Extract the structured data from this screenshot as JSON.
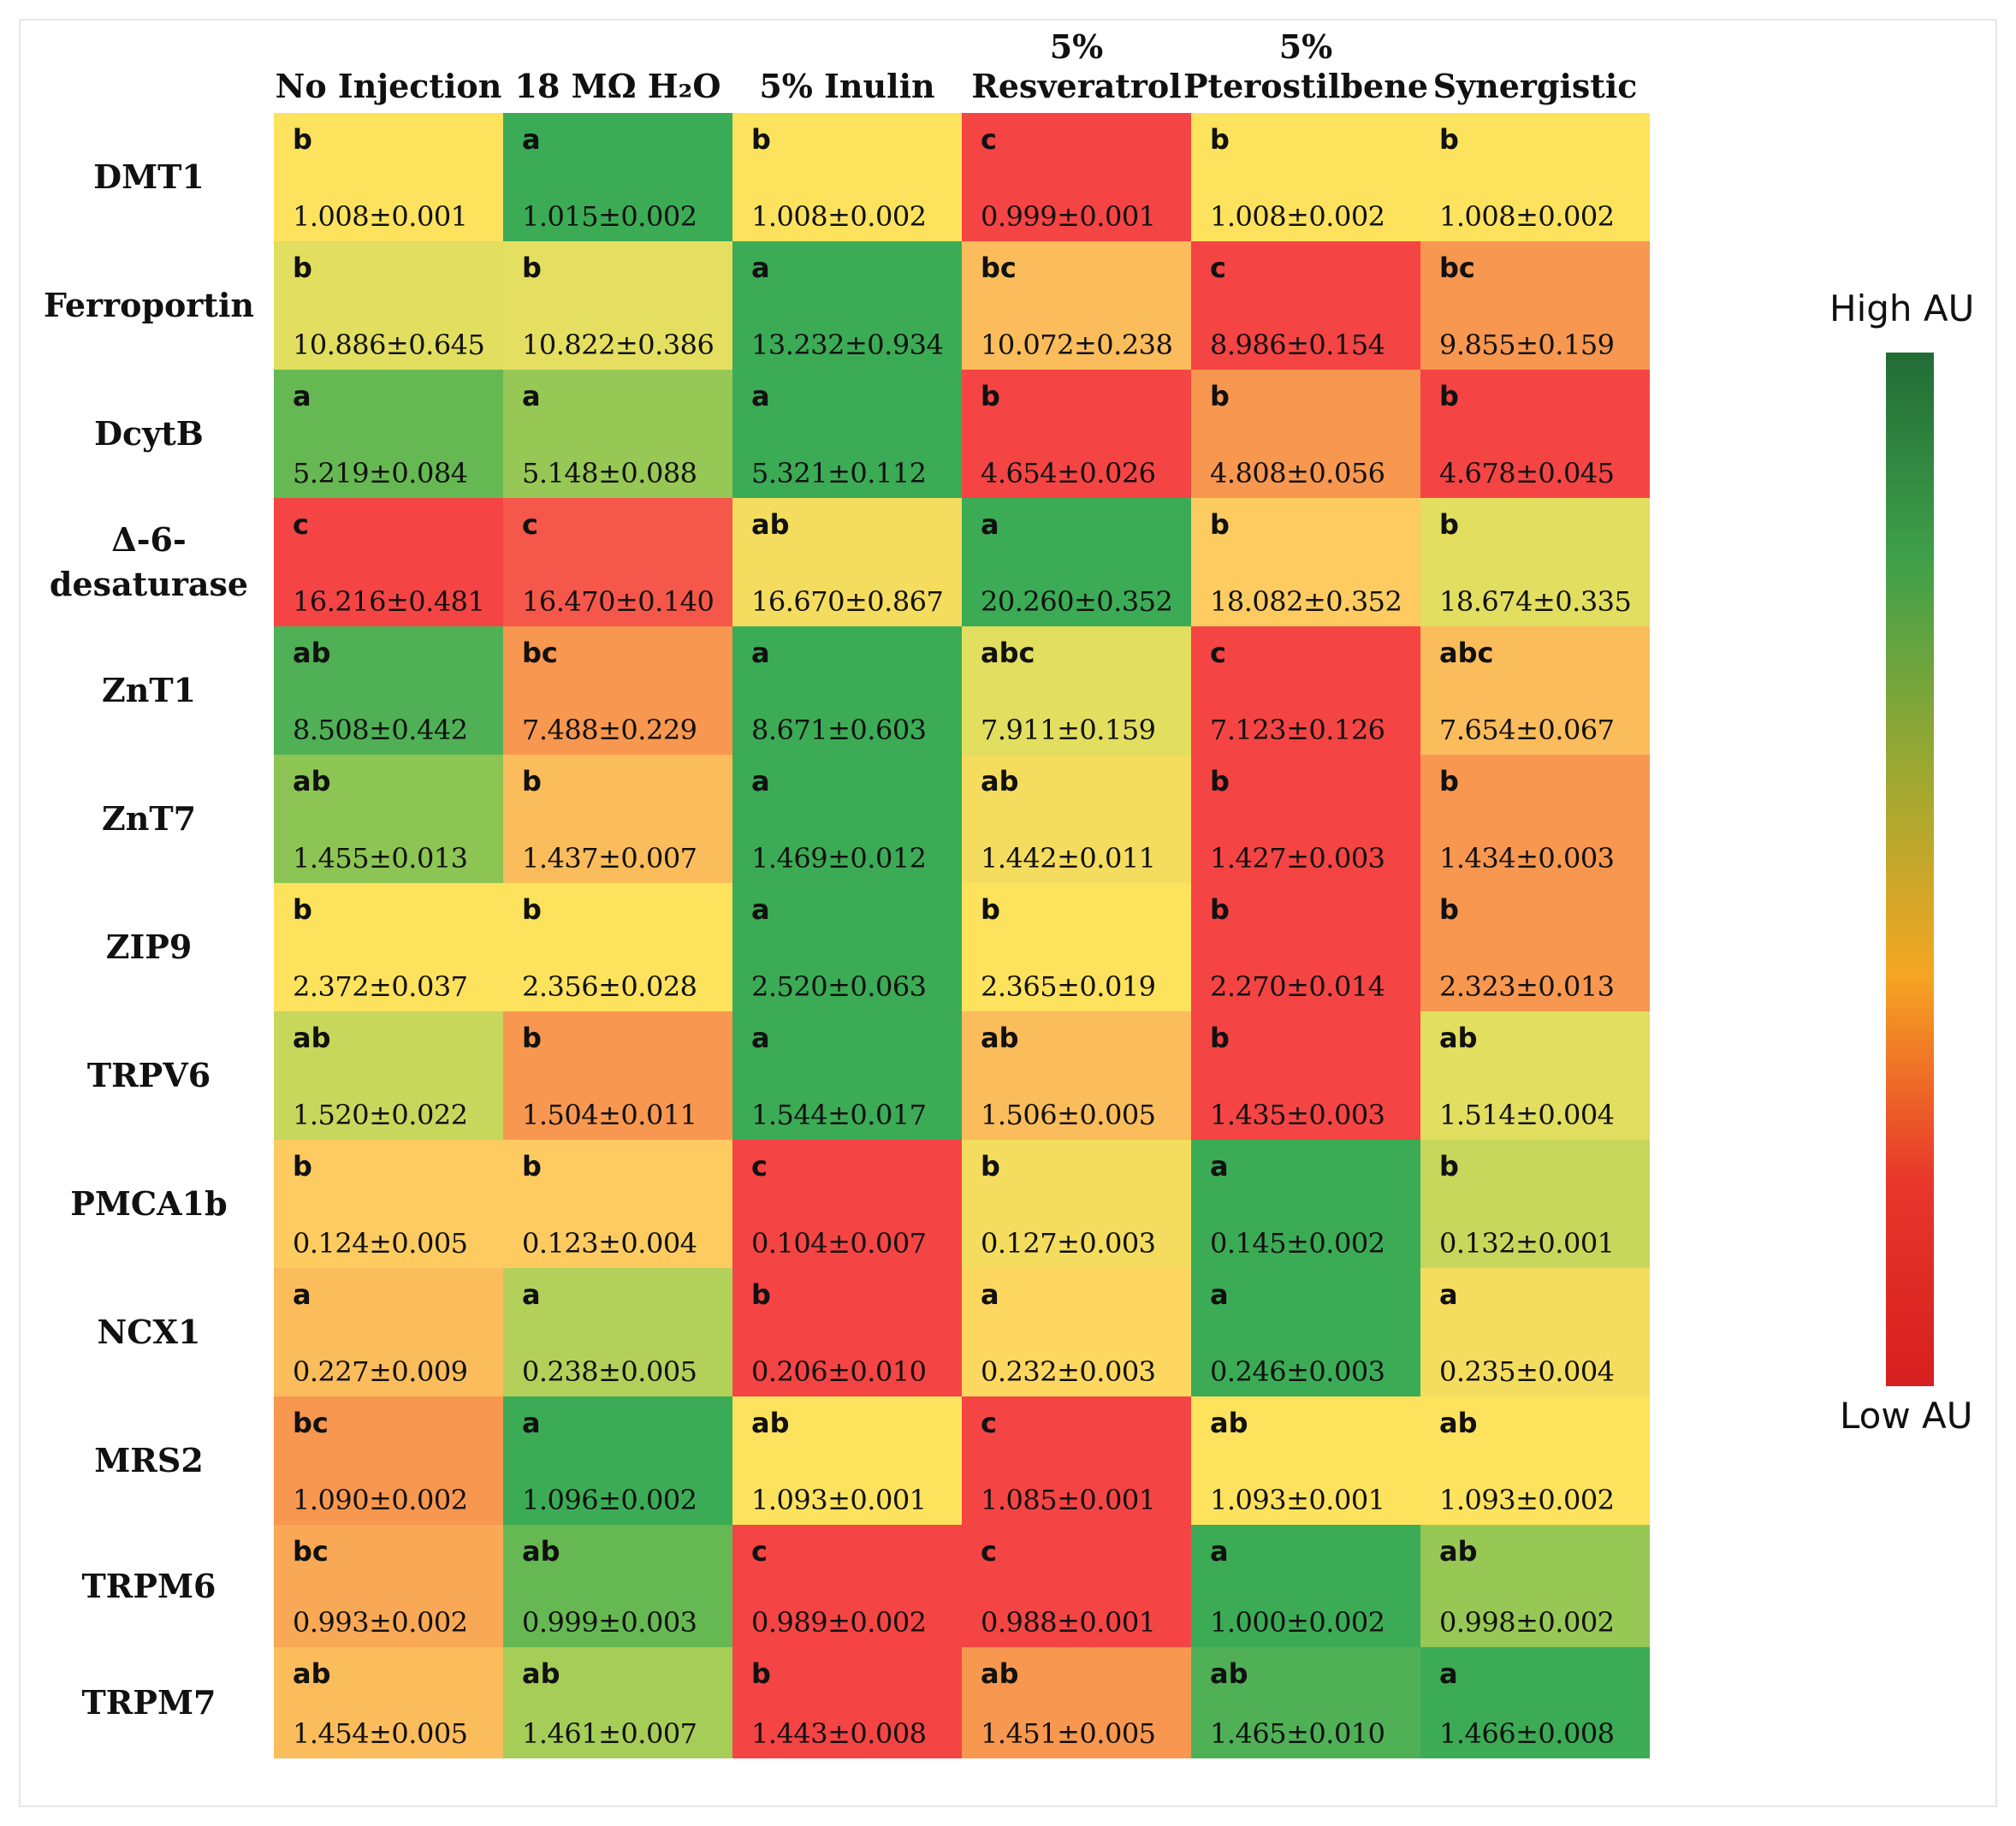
{
  "chart_data": {
    "type": "heatmap",
    "title": "",
    "columns": [
      "No Injection",
      "18 MΩ H₂O",
      "5% Inulin",
      "5%\nResveratrol",
      "5%\nPterostilbene",
      "Synergistic"
    ],
    "rows": [
      "DMT1",
      "Ferroportin",
      "DcytB",
      "Δ-6-\ndesaturase",
      "ZnT1",
      "ZnT7",
      "ZIP9",
      "TRPV6",
      "PMCA1b",
      "NCX1",
      "MRS2",
      "TRPM6",
      "TRPM7"
    ],
    "cells": [
      [
        {
          "letters": "b",
          "value": "1.008±0.001",
          "color": "#fde25e"
        },
        {
          "letters": "a",
          "value": "1.015±0.002",
          "color": "#3cab55"
        },
        {
          "letters": "b",
          "value": "1.008±0.002",
          "color": "#fde25e"
        },
        {
          "letters": "c",
          "value": "0.999±0.001",
          "color": "#f44444"
        },
        {
          "letters": "b",
          "value": "1.008±0.002",
          "color": "#fde25e"
        },
        {
          "letters": "b",
          "value": "1.008±0.002",
          "color": "#fde25e"
        }
      ],
      [
        {
          "letters": "b",
          "value": "10.886±0.645",
          "color": "#e1de60"
        },
        {
          "letters": "b",
          "value": "10.822±0.386",
          "color": "#e4df60"
        },
        {
          "letters": "a",
          "value": "13.232±0.934",
          "color": "#3cab55"
        },
        {
          "letters": "bc",
          "value": "10.072±0.238",
          "color": "#fbbc5b"
        },
        {
          "letters": "c",
          "value": "8.986±0.154",
          "color": "#f44444"
        },
        {
          "letters": "bc",
          "value": "9.855±0.159",
          "color": "#f79750"
        }
      ],
      [
        {
          "letters": "a",
          "value": "5.219±0.084",
          "color": "#66b952"
        },
        {
          "letters": "a",
          "value": "5.148±0.088",
          "color": "#97c856"
        },
        {
          "letters": "a",
          "value": "5.321±0.112",
          "color": "#3cab55"
        },
        {
          "letters": "b",
          "value": "4.654±0.026",
          "color": "#f44444"
        },
        {
          "letters": "b",
          "value": "4.808±0.056",
          "color": "#f79750"
        },
        {
          "letters": "b",
          "value": "4.678±0.045",
          "color": "#f44444"
        }
      ],
      [
        {
          "letters": "c",
          "value": "16.216±0.481",
          "color": "#f44444"
        },
        {
          "letters": "c",
          "value": "16.470±0.140",
          "color": "#f5574a"
        },
        {
          "letters": "ab",
          "value": "16.670±0.867",
          "color": "#f4dc5e"
        },
        {
          "letters": "a",
          "value": "20.260±0.352",
          "color": "#3cab55"
        },
        {
          "letters": "b",
          "value": "18.082±0.352",
          "color": "#fdcb60"
        },
        {
          "letters": "b",
          "value": "18.674±0.335",
          "color": "#e1de60"
        }
      ],
      [
        {
          "letters": "ab",
          "value": "8.508±0.442",
          "color": "#4fb056"
        },
        {
          "letters": "bc",
          "value": "7.488±0.229",
          "color": "#f79750"
        },
        {
          "letters": "a",
          "value": "8.671±0.603",
          "color": "#3cab55"
        },
        {
          "letters": "abc",
          "value": "7.911±0.159",
          "color": "#e1de60"
        },
        {
          "letters": "c",
          "value": "7.123±0.126",
          "color": "#f44444"
        },
        {
          "letters": "abc",
          "value": "7.654±0.067",
          "color": "#fbbc5b"
        }
      ],
      [
        {
          "letters": "ab",
          "value": "1.455±0.013",
          "color": "#8cc554"
        },
        {
          "letters": "b",
          "value": "1.437±0.007",
          "color": "#fbbc5b"
        },
        {
          "letters": "a",
          "value": "1.469±0.012",
          "color": "#3cab55"
        },
        {
          "letters": "ab",
          "value": "1.442±0.011",
          "color": "#f4dc5e"
        },
        {
          "letters": "b",
          "value": "1.427±0.003",
          "color": "#f44444"
        },
        {
          "letters": "b",
          "value": "1.434±0.003",
          "color": "#f79750"
        }
      ],
      [
        {
          "letters": "b",
          "value": "2.372±0.037",
          "color": "#fde25e"
        },
        {
          "letters": "b",
          "value": "2.356±0.028",
          "color": "#fde25e"
        },
        {
          "letters": "a",
          "value": "2.520±0.063",
          "color": "#3cab55"
        },
        {
          "letters": "b",
          "value": "2.365±0.019",
          "color": "#fde25e"
        },
        {
          "letters": "b",
          "value": "2.270±0.014",
          "color": "#f44444"
        },
        {
          "letters": "b",
          "value": "2.323±0.013",
          "color": "#f79750"
        }
      ],
      [
        {
          "letters": "ab",
          "value": "1.520±0.022",
          "color": "#c7d75b"
        },
        {
          "letters": "b",
          "value": "1.504±0.011",
          "color": "#f79750"
        },
        {
          "letters": "a",
          "value": "1.544±0.017",
          "color": "#3cab55"
        },
        {
          "letters": "ab",
          "value": "1.506±0.005",
          "color": "#fbbc5b"
        },
        {
          "letters": "b",
          "value": "1.435±0.003",
          "color": "#f44444"
        },
        {
          "letters": "ab",
          "value": "1.514±0.004",
          "color": "#e1de60"
        }
      ],
      [
        {
          "letters": "b",
          "value": "0.124±0.005",
          "color": "#fdcb60"
        },
        {
          "letters": "b",
          "value": "0.123±0.004",
          "color": "#fdcb60"
        },
        {
          "letters": "c",
          "value": "0.104±0.007",
          "color": "#f44444"
        },
        {
          "letters": "b",
          "value": "0.127±0.003",
          "color": "#f4dc5e"
        },
        {
          "letters": "a",
          "value": "0.145±0.002",
          "color": "#3cab55"
        },
        {
          "letters": "b",
          "value": "0.132±0.001",
          "color": "#c7d75b"
        }
      ],
      [
        {
          "letters": "a",
          "value": "0.227±0.009",
          "color": "#fbbc5b"
        },
        {
          "letters": "a",
          "value": "0.238±0.005",
          "color": "#b3d15a"
        },
        {
          "letters": "b",
          "value": "0.206±0.010",
          "color": "#f44444"
        },
        {
          "letters": "a",
          "value": "0.232±0.003",
          "color": "#fdd760"
        },
        {
          "letters": "a",
          "value": "0.246±0.003",
          "color": "#3cab55"
        },
        {
          "letters": "a",
          "value": "0.235±0.004",
          "color": "#f4dc5e"
        }
      ],
      [
        {
          "letters": "bc",
          "value": "1.090±0.002",
          "color": "#f79750"
        },
        {
          "letters": "a",
          "value": "1.096±0.002",
          "color": "#3cab55"
        },
        {
          "letters": "ab",
          "value": "1.093±0.001",
          "color": "#fde25e"
        },
        {
          "letters": "c",
          "value": "1.085±0.001",
          "color": "#f44444"
        },
        {
          "letters": "ab",
          "value": "1.093±0.001",
          "color": "#fde25e"
        },
        {
          "letters": "ab",
          "value": "1.093±0.002",
          "color": "#fde25e"
        }
      ],
      [
        {
          "letters": "bc",
          "value": "0.993±0.002",
          "color": "#f9a855"
        },
        {
          "letters": "ab",
          "value": "0.999±0.003",
          "color": "#66b952"
        },
        {
          "letters": "c",
          "value": "0.989±0.002",
          "color": "#f44444"
        },
        {
          "letters": "c",
          "value": "0.988±0.001",
          "color": "#f44444"
        },
        {
          "letters": "a",
          "value": "1.000±0.002",
          "color": "#3cab55"
        },
        {
          "letters": "ab",
          "value": "0.998±0.002",
          "color": "#97c856"
        }
      ],
      [
        {
          "letters": "ab",
          "value": "1.454±0.005",
          "color": "#fbbc5b"
        },
        {
          "letters": "ab",
          "value": "1.461±0.007",
          "color": "#a6cd58"
        },
        {
          "letters": "b",
          "value": "1.443±0.008",
          "color": "#f44444"
        },
        {
          "letters": "ab",
          "value": "1.451±0.005",
          "color": "#f79750"
        },
        {
          "letters": "ab",
          "value": "1.465±0.010",
          "color": "#4fb056"
        },
        {
          "letters": "a",
          "value": "1.466±0.008",
          "color": "#3cab55"
        }
      ]
    ],
    "legend": {
      "high_label": "High AU",
      "low_label": "Low AU",
      "gradient": [
        "#226c36",
        "#3fa04a",
        "#9aa832",
        "#f5a623",
        "#e8372b",
        "#d61f1f"
      ]
    }
  }
}
